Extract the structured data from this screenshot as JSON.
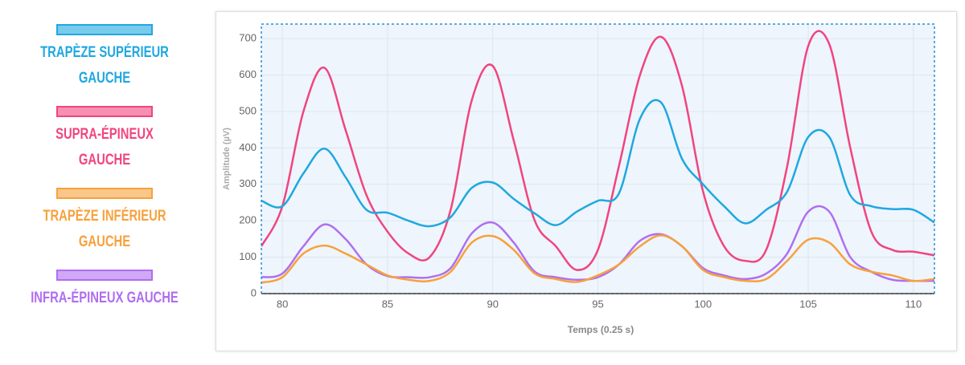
{
  "chart_data": {
    "type": "line",
    "xlabel": "Temps (0.25 s)",
    "ylabel": "Amplitude (µV)",
    "x": [
      79,
      80,
      81,
      82,
      83,
      84,
      85,
      86,
      87,
      88,
      89,
      90,
      91,
      92,
      93,
      94,
      95,
      96,
      97,
      98,
      99,
      100,
      101,
      102,
      103,
      104,
      105,
      106,
      107,
      108,
      109,
      110,
      111
    ],
    "series": [
      {
        "name": "TRAPÈZE SUPÉRIEUR GAUCHE",
        "color": "#1fa8e0",
        "values": [
          255,
          240,
          330,
          398,
          320,
          230,
          222,
          200,
          185,
          210,
          290,
          305,
          260,
          220,
          188,
          225,
          255,
          275,
          480,
          525,
          370,
          300,
          240,
          193,
          230,
          280,
          430,
          430,
          270,
          240,
          232,
          230,
          195
        ]
      },
      {
        "name": "SUPRA-ÉPINEUX GAUCHE",
        "color": "#f0457f",
        "values": [
          130,
          240,
          500,
          620,
          450,
          270,
          170,
          110,
          100,
          230,
          530,
          625,
          420,
          200,
          130,
          65,
          120,
          350,
          600,
          705,
          570,
          280,
          130,
          90,
          120,
          350,
          680,
          685,
          400,
          170,
          120,
          115,
          105
        ]
      },
      {
        "name": "TRAPÈZE INFÉRIEUR GAUCHE",
        "color": "#f7a13c",
        "values": [
          30,
          45,
          110,
          132,
          110,
          80,
          50,
          38,
          35,
          60,
          140,
          158,
          120,
          55,
          40,
          32,
          50,
          80,
          130,
          160,
          130,
          65,
          45,
          35,
          40,
          90,
          148,
          140,
          80,
          60,
          50,
          35,
          40
        ]
      },
      {
        "name": "INFRA-ÉPINEUX GAUCHE",
        "color": "#b06ef0",
        "values": [
          45,
          55,
          130,
          190,
          150,
          80,
          48,
          45,
          45,
          70,
          165,
          195,
          140,
          60,
          45,
          38,
          45,
          80,
          145,
          163,
          130,
          70,
          50,
          40,
          55,
          110,
          225,
          225,
          100,
          60,
          38,
          35,
          35
        ]
      }
    ],
    "xlim": [
      79,
      111
    ],
    "ylim": [
      0,
      740
    ],
    "xticks": [
      80,
      85,
      90,
      95,
      100,
      105,
      110
    ],
    "yticks": [
      0,
      100,
      200,
      300,
      400,
      500,
      600,
      700
    ],
    "grid": true,
    "legend": "left"
  }
}
